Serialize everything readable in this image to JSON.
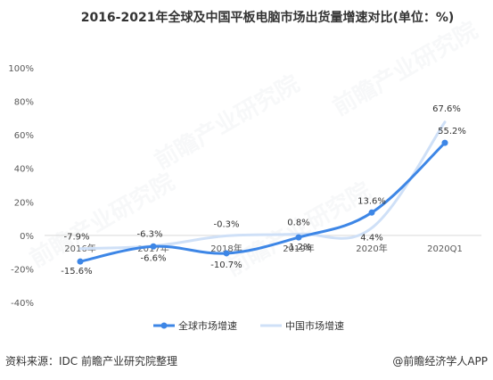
{
  "title": "2016-2021年全球及中国平板电脑市场出货量增速对比(单位：%)",
  "footer": {
    "source": "资料来源：IDC 前瞻产业研究院整理",
    "brand": "@前瞻经济学人APP"
  },
  "watermark": {
    "text": "前瞻产业研究院"
  },
  "colors": {
    "global": "#3d86e6",
    "china": "#cfe0f7",
    "axis": "#d9d9d9",
    "text": "#333333"
  },
  "chart_data": {
    "type": "line",
    "categories": [
      "2016年",
      "2017年",
      "2018年",
      "2019年",
      "2020年",
      "2020Q1"
    ],
    "ylim": [
      -40,
      100
    ],
    "yticks": [
      "100%",
      "80%",
      "60%",
      "40%",
      "20%",
      "0%",
      "-20%",
      "-40%"
    ],
    "ytick_values": [
      100,
      80,
      60,
      40,
      20,
      0,
      -20,
      -40
    ],
    "legend_position": "bottom",
    "series": [
      {
        "name": "全球市场增速",
        "values": [
          -15.6,
          -6.6,
          -10.7,
          -1.2,
          13.6,
          55.2
        ],
        "labels": [
          "-15.6%",
          "-6.6%",
          "-10.7%",
          "-1.2%",
          "13.6%",
          "55.2%"
        ]
      },
      {
        "name": "中国市场增速",
        "values": [
          -7.9,
          -6.3,
          -0.3,
          0.8,
          4.4,
          67.6
        ],
        "labels": [
          "-7.9%",
          "-6.3%",
          "-0.3%",
          "0.8%",
          "4.4%",
          "67.6%"
        ]
      }
    ]
  }
}
